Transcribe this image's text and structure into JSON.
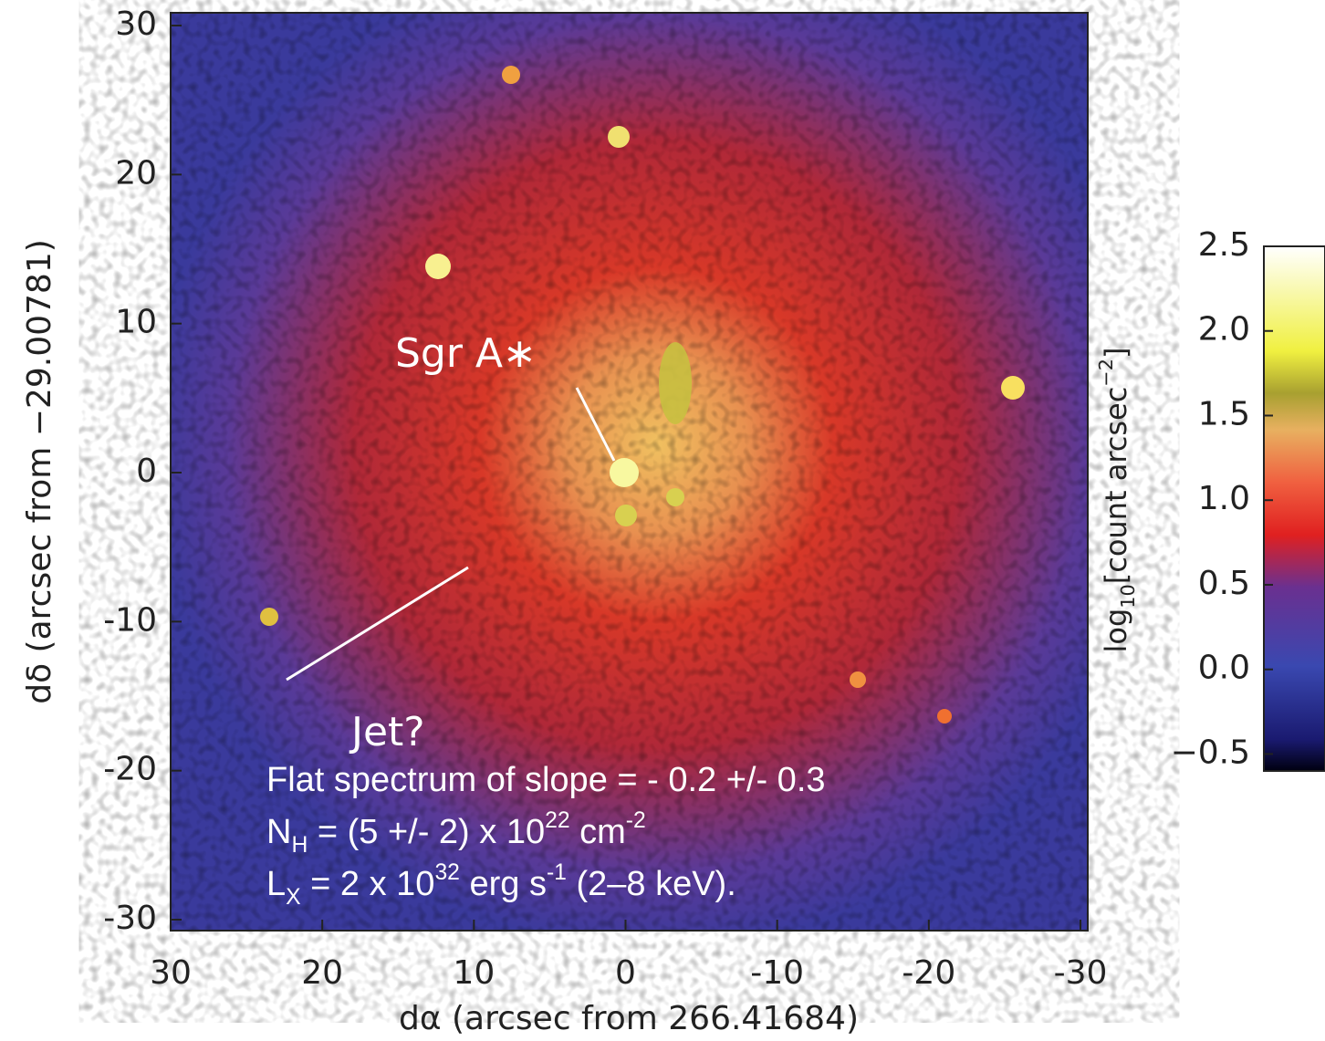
{
  "chart_data": {
    "type": "image",
    "xlabel": "dα (arcsec from 266.41684)",
    "ylabel": "dδ (arcsec from −29.00781)",
    "xlim": [
      30,
      -30
    ],
    "xticks": [
      30,
      20,
      10,
      0,
      -10,
      -20,
      -30
    ],
    "ylim": [
      -30,
      30
    ],
    "yticks": [
      30,
      20,
      10,
      0,
      -10,
      -20,
      -30
    ],
    "colorbar": {
      "label": [
        {
          "text": "log"
        },
        {
          "sub": "10"
        },
        {
          "text": "[count arcsec"
        },
        {
          "sup": "−2"
        },
        {
          "text": "]"
        }
      ],
      "lim": [
        -0.6,
        2.5
      ],
      "ticks": [
        {
          "value": 2.5,
          "label": "2.5"
        },
        {
          "value": 2.0,
          "label": "2.0"
        },
        {
          "value": 1.5,
          "label": "1.5"
        },
        {
          "value": 1.0,
          "label": "1.0"
        },
        {
          "value": 0.5,
          "label": "0.5"
        },
        {
          "value": 0.0,
          "label": "0.0"
        },
        {
          "value": -0.5,
          "label": "−0.5"
        }
      ]
    },
    "annotations": [
      "Sgr A∗",
      "Jet?"
    ],
    "note": [
      [
        {
          "text": "Flat spectrum of slope = - 0.2 +/- 0.3"
        }
      ],
      [
        {
          "text": "N"
        },
        {
          "sub": "H"
        },
        {
          "text": " = (5 +/- 2) x 10"
        },
        {
          "sup": "22"
        },
        {
          "text": " cm"
        },
        {
          "sup": "-2"
        }
      ],
      [
        {
          "text": "L"
        },
        {
          "sub": "X"
        },
        {
          "text": " = 2 x 10"
        },
        {
          "sup": "32"
        },
        {
          "text": " erg s"
        },
        {
          "sup": "-1"
        },
        {
          "text": " (2–8 keV)."
        }
      ]
    ]
  }
}
